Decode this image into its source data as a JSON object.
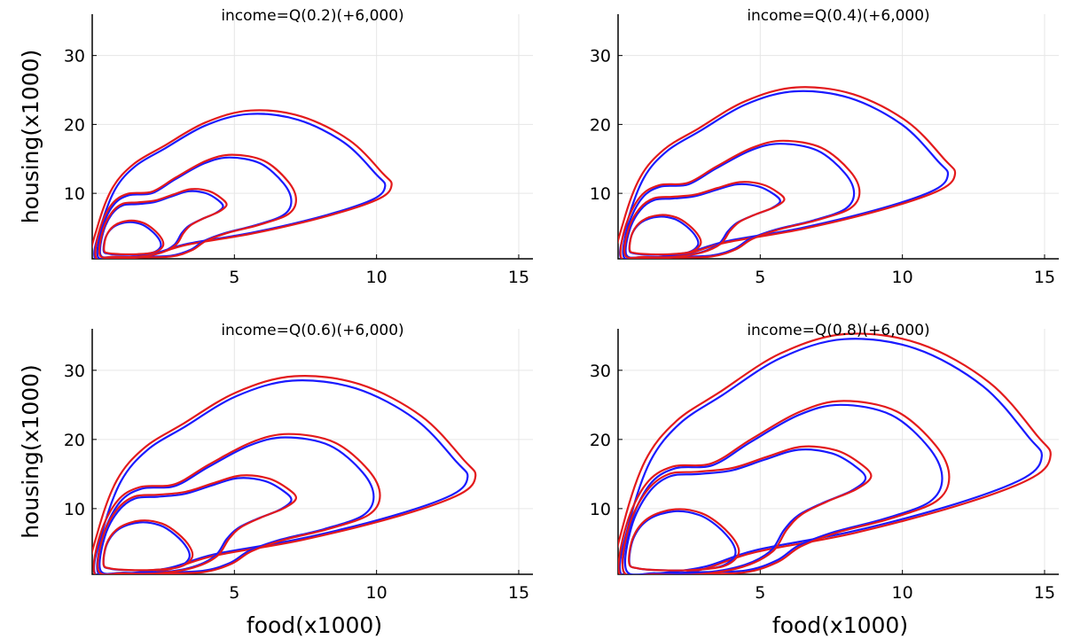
{
  "chart_data": [
    {
      "type": "line",
      "title": "income=Q(0.2)(+6,000)",
      "xlabel": "",
      "ylabel": "housing(x1000)",
      "xlim": [
        0,
        15.5
      ],
      "ylim": [
        0.5,
        36
      ],
      "xticks": [
        "5",
        "10",
        "15"
      ],
      "yticks": [
        "10",
        "20",
        "30"
      ],
      "grid": true,
      "series_colors": {
        "blue": "#1a1aff",
        "red": "#e31a1c"
      },
      "contours": [
        {
          "level": 1,
          "peaks": [
            {
              "x": 5.5,
              "y": 21.5
            }
          ],
          "x": [
            0.1,
            10.3
          ],
          "y": [
            0.6,
            21.5
          ]
        },
        {
          "level": 2,
          "peaks": [
            {
              "x": 4.7,
              "y": 15.2
            }
          ],
          "x": [
            0.2,
            7.0
          ],
          "y": [
            0.8,
            15.2
          ]
        },
        {
          "level": 3,
          "peaks": [
            {
              "x": 3.8,
              "y": 10.3
            }
          ],
          "x": [
            0.3,
            4.6
          ],
          "y": [
            1.0,
            10.3
          ]
        },
        {
          "level": 4,
          "peaks": [
            {
              "x": 1.3,
              "y": 5.8
            }
          ],
          "x": [
            0.4,
            2.4
          ],
          "y": [
            1.1,
            5.8
          ]
        }
      ]
    },
    {
      "type": "line",
      "title": "income=Q(0.4)(+6,000)",
      "xlabel": "",
      "ylabel": "",
      "xlim": [
        0,
        15.5
      ],
      "ylim": [
        0.5,
        36
      ],
      "xticks": [
        "5",
        "10",
        "15"
      ],
      "yticks": [
        "10",
        "20",
        "30"
      ],
      "grid": true,
      "series_colors": {
        "blue": "#1a1aff",
        "red": "#e31a1c"
      },
      "contours": [
        {
          "level": 1,
          "peaks": [
            {
              "x": 6.5,
              "y": 24.8
            }
          ],
          "x": [
            0.1,
            11.6
          ],
          "y": [
            0.6,
            24.8
          ]
        },
        {
          "level": 2,
          "peaks": [
            {
              "x": 5.9,
              "y": 17.2
            }
          ],
          "x": [
            0.2,
            8.3
          ],
          "y": [
            0.8,
            17.2
          ]
        },
        {
          "level": 3,
          "peaks": [
            {
              "x": 4.9,
              "y": 11.3
            }
          ],
          "x": [
            0.3,
            5.7
          ],
          "y": [
            1.0,
            11.3
          ]
        },
        {
          "level": 4,
          "peaks": [
            {
              "x": 1.6,
              "y": 6.6
            }
          ],
          "x": [
            0.4,
            2.8
          ],
          "y": [
            1.1,
            6.6
          ]
        }
      ]
    },
    {
      "type": "line",
      "title": "income=Q(0.6)(+6,000)",
      "xlabel": "food(x1000)",
      "ylabel": "housing(x1000)",
      "xlim": [
        0,
        15.5
      ],
      "ylim": [
        0.5,
        36
      ],
      "xticks": [
        "5",
        "10",
        "15"
      ],
      "yticks": [
        "10",
        "20",
        "30"
      ],
      "grid": true,
      "series_colors": {
        "blue": "#1a1aff",
        "red": "#e31a1c"
      },
      "contours": [
        {
          "level": 1,
          "peaks": [
            {
              "x": 7.5,
              "y": 28.5
            }
          ],
          "x": [
            0.1,
            13.2
          ],
          "y": [
            0.6,
            28.5
          ]
        },
        {
          "level": 2,
          "peaks": [
            {
              "x": 6.7,
              "y": 20.3
            }
          ],
          "x": [
            0.2,
            9.9
          ],
          "y": [
            0.8,
            20.3
          ]
        },
        {
          "level": 3,
          "peaks": [
            {
              "x": 6.0,
              "y": 14.4
            }
          ],
          "x": [
            0.3,
            7.0
          ],
          "y": [
            1.0,
            14.4
          ]
        },
        {
          "level": 4,
          "peaks": [
            {
              "x": 1.9,
              "y": 8.0
            }
          ],
          "x": [
            0.4,
            3.4
          ],
          "y": [
            1.1,
            8.0
          ]
        }
      ]
    },
    {
      "type": "line",
      "title": "income=Q(0.8)(+6,000)",
      "xlabel": "food(x1000)",
      "ylabel": "",
      "xlim": [
        0,
        15.5
      ],
      "ylim": [
        0.5,
        36
      ],
      "xticks": [
        "5",
        "10",
        "15"
      ],
      "yticks": [
        "10",
        "20",
        "30"
      ],
      "grid": true,
      "series_colors": {
        "blue": "#1a1aff",
        "red": "#e31a1c"
      },
      "contours": [
        {
          "level": 1,
          "peaks": [
            {
              "x": 9.0,
              "y": 34.5
            }
          ],
          "x": [
            0.1,
            14.9
          ],
          "y": [
            0.6,
            34.5
          ]
        },
        {
          "level": 2,
          "peaks": [
            {
              "x": 8.2,
              "y": 25.0
            }
          ],
          "x": [
            0.2,
            11.4
          ],
          "y": [
            0.8,
            25.0
          ]
        },
        {
          "level": 3,
          "peaks": [
            {
              "x": 7.7,
              "y": 18.5
            }
          ],
          "x": [
            0.3,
            8.7
          ],
          "y": [
            1.0,
            18.5
          ]
        },
        {
          "level": 4,
          "peaks": [
            {
              "x": 2.3,
              "y": 9.6
            }
          ],
          "x": [
            0.4,
            4.1
          ],
          "y": [
            1.1,
            9.6
          ]
        }
      ]
    }
  ]
}
